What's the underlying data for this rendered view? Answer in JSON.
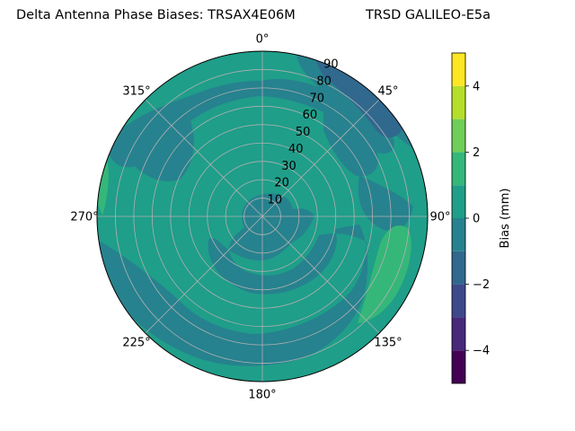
{
  "chart_data": {
    "type": "heatmap",
    "title": "Delta Antenna Phase Biases: TRSAX4E06M",
    "subtitle": "TRSD GALILEO-E5a",
    "projection": "polar",
    "angular_ticks": [
      "0°",
      "45°",
      "90°",
      "135°",
      "180°",
      "225°",
      "270°",
      "315°"
    ],
    "radial_ticks": [
      "10",
      "20",
      "30",
      "40",
      "50",
      "60",
      "70",
      "80",
      "90"
    ],
    "rlim": [
      0,
      90
    ],
    "grid": true,
    "colorbar": {
      "label": "Bias (mm)",
      "range": [
        -5,
        5
      ],
      "levels": [
        -5,
        -4,
        -3,
        -2,
        -1,
        0,
        1,
        2,
        3,
        4,
        5
      ],
      "ticks": [
        "−4",
        "−2",
        "0",
        "2",
        "4"
      ],
      "tick_values": [
        -4,
        -2,
        0,
        2,
        4
      ],
      "colors": [
        "#440154",
        "#482878",
        "#3e4989",
        "#31688e",
        "#26828e",
        "#1f9e89",
        "#35b779",
        "#6ece58",
        "#b5de2b",
        "#fde725"
      ]
    },
    "regions": [
      {
        "band": [
          0,
          1
        ],
        "description": "background level over most of the sky"
      },
      {
        "band": [
          -1,
          0
        ],
        "description": "ring near elevation 60-80 on the northern half, eastern patches, southern and south-western sectors, near-zenith core"
      },
      {
        "band": [
          -2,
          -1
        ],
        "description": "north-east near horizon around azimuth 30-60"
      },
      {
        "band": [
          1,
          2
        ],
        "description": "south-east near horizon around azimuth 100-140, small western edge patch"
      }
    ]
  }
}
